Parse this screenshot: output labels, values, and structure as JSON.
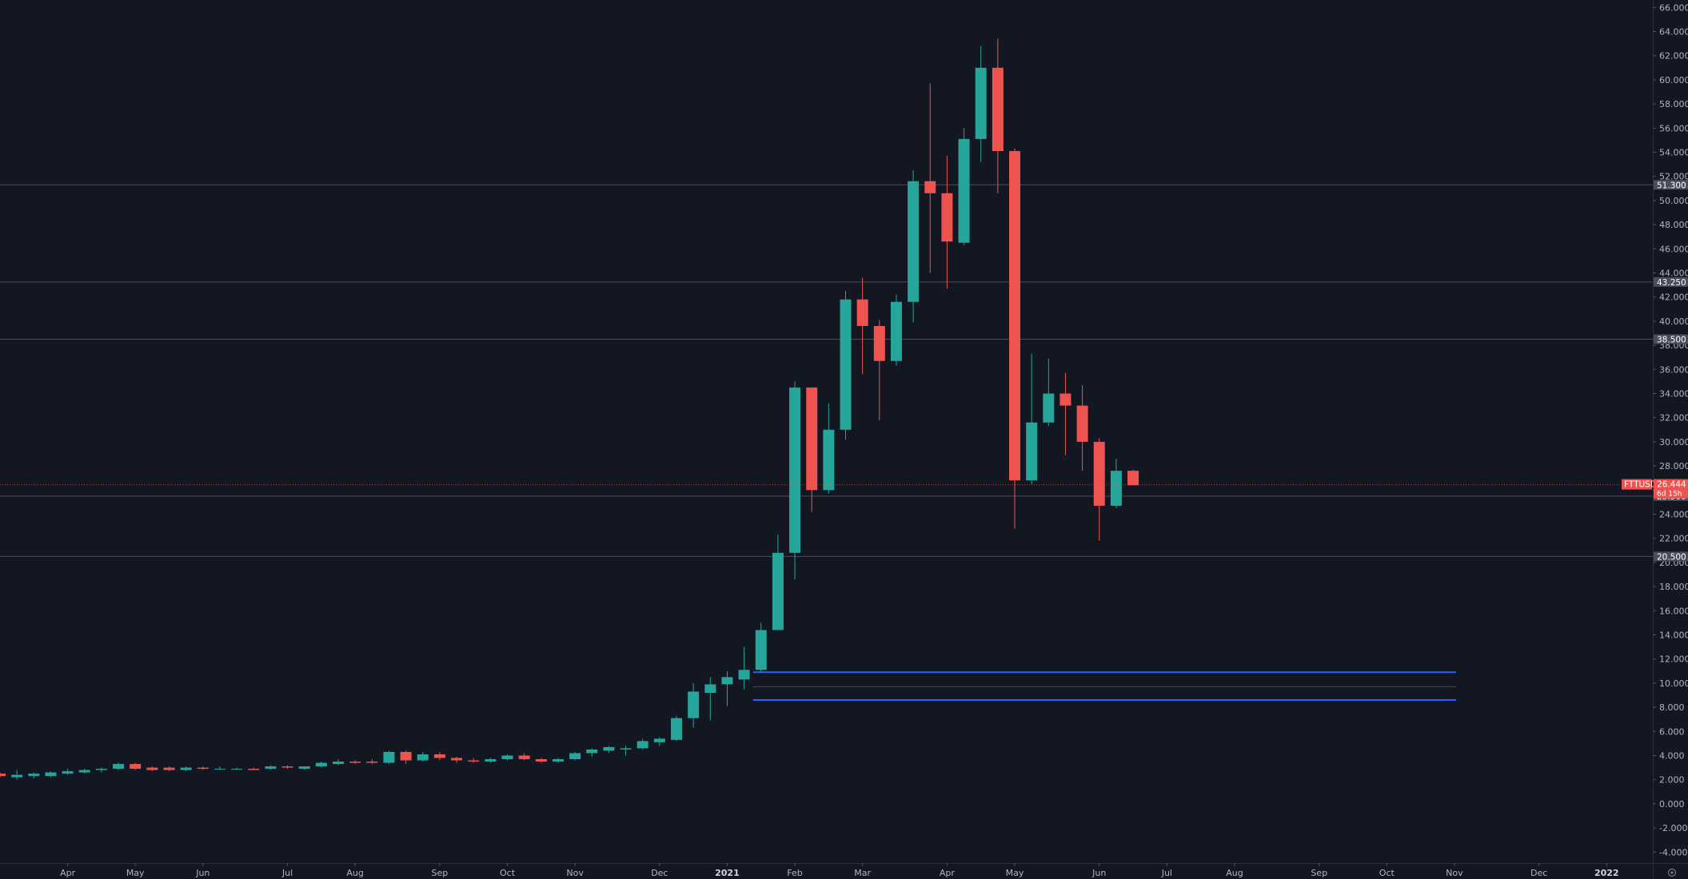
{
  "chart_data": {
    "type": "candlestick",
    "symbol": "FTTUSD",
    "interval": "weekly",
    "last_price": "26.444",
    "countdown": "6d 15h",
    "colors": {
      "background": "#131722",
      "up": "#26a69a",
      "down": "#ef5350",
      "level_line": "#4a4e5a",
      "zone_line": "#2962ff",
      "zone_mid": "#3b4a77",
      "price_line": "#ef5350"
    },
    "y_axis": {
      "min": -4,
      "max": 66,
      "step": 2,
      "ticks": [
        "-4.000",
        "-2.000",
        "0.000",
        "2.000",
        "4.000",
        "6.000",
        "8.000",
        "10.000",
        "12.000",
        "14.000",
        "16.000",
        "18.000",
        "20.000",
        "22.000",
        "24.000",
        "26.000",
        "28.000",
        "30.000",
        "32.000",
        "34.000",
        "36.000",
        "38.000",
        "40.000",
        "42.000",
        "44.000",
        "46.000",
        "48.000",
        "50.000",
        "52.000",
        "54.000",
        "56.000",
        "58.000",
        "60.000",
        "62.000",
        "64.000",
        "66.000"
      ]
    },
    "x_axis": {
      "labels": [
        {
          "text": "Apr",
          "bar": 4
        },
        {
          "text": "May",
          "bar": 8
        },
        {
          "text": "Jun",
          "bar": 12
        },
        {
          "text": "Jul",
          "bar": 17
        },
        {
          "text": "Aug",
          "bar": 21
        },
        {
          "text": "Sep",
          "bar": 26
        },
        {
          "text": "Oct",
          "bar": 30
        },
        {
          "text": "Nov",
          "bar": 34
        },
        {
          "text": "Dec",
          "bar": 39
        },
        {
          "text": "2021",
          "bar": 43,
          "bold": true
        },
        {
          "text": "Feb",
          "bar": 47
        },
        {
          "text": "Mar",
          "bar": 51
        },
        {
          "text": "Apr",
          "bar": 56
        },
        {
          "text": "May",
          "bar": 60
        },
        {
          "text": "Jun",
          "bar": 65
        },
        {
          "text": "Jul",
          "bar": 69
        },
        {
          "text": "Aug",
          "bar": 73
        },
        {
          "text": "Sep",
          "bar": 78
        },
        {
          "text": "Oct",
          "bar": 82
        },
        {
          "text": "Nov",
          "bar": 86
        },
        {
          "text": "Dec",
          "bar": 91
        },
        {
          "text": "2022",
          "bar": 95,
          "bold": true
        }
      ]
    },
    "horizontal_levels": [
      {
        "price": 51.3,
        "label": "51.300"
      },
      {
        "price": 43.25,
        "label": "43.250"
      },
      {
        "price": 38.5,
        "label": "38.500"
      },
      {
        "price": 25.5,
        "label": "25.500"
      },
      {
        "price": 20.5,
        "label": "20.500"
      }
    ],
    "zone": {
      "top": 10.9,
      "mid": 9.7,
      "bottom": 8.6,
      "start_bar": 45,
      "end_bar": 86
    },
    "candles": [
      [
        2.5,
        2.6,
        2.2,
        2.3
      ],
      [
        2.2,
        2.8,
        2.0,
        2.4
      ],
      [
        2.3,
        2.6,
        2.1,
        2.5
      ],
      [
        2.3,
        2.7,
        2.2,
        2.6
      ],
      [
        2.5,
        2.9,
        2.4,
        2.7
      ],
      [
        2.6,
        2.9,
        2.5,
        2.8
      ],
      [
        2.8,
        3.0,
        2.6,
        2.9
      ],
      [
        2.9,
        3.4,
        2.8,
        3.3
      ],
      [
        3.3,
        3.4,
        2.8,
        2.9
      ],
      [
        3.0,
        3.1,
        2.7,
        2.8
      ],
      [
        3.0,
        3.1,
        2.7,
        2.8
      ],
      [
        2.8,
        3.1,
        2.7,
        3.0
      ],
      [
        3.0,
        3.1,
        2.8,
        2.9
      ],
      [
        2.9,
        3.1,
        2.8,
        2.9
      ],
      [
        2.9,
        3.0,
        2.8,
        2.9
      ],
      [
        2.9,
        3.0,
        2.8,
        2.8
      ],
      [
        2.9,
        3.2,
        2.8,
        3.1
      ],
      [
        3.1,
        3.2,
        2.9,
        3.0
      ],
      [
        2.9,
        3.1,
        2.8,
        3.1
      ],
      [
        3.1,
        3.5,
        3.0,
        3.4
      ],
      [
        3.3,
        3.7,
        3.2,
        3.5
      ],
      [
        3.5,
        3.6,
        3.3,
        3.4
      ],
      [
        3.5,
        3.7,
        3.3,
        3.4
      ],
      [
        3.4,
        4.4,
        3.3,
        4.3
      ],
      [
        4.3,
        4.4,
        3.3,
        3.6
      ],
      [
        3.6,
        4.3,
        3.5,
        4.1
      ],
      [
        4.1,
        4.3,
        3.6,
        3.8
      ],
      [
        3.8,
        3.9,
        3.4,
        3.6
      ],
      [
        3.6,
        3.8,
        3.4,
        3.5
      ],
      [
        3.5,
        3.8,
        3.4,
        3.7
      ],
      [
        3.7,
        4.1,
        3.6,
        4.0
      ],
      [
        4.0,
        4.2,
        3.6,
        3.7
      ],
      [
        3.7,
        3.8,
        3.4,
        3.5
      ],
      [
        3.5,
        3.8,
        3.4,
        3.7
      ],
      [
        3.7,
        4.3,
        3.6,
        4.2
      ],
      [
        4.2,
        4.6,
        3.9,
        4.5
      ],
      [
        4.4,
        4.8,
        4.2,
        4.7
      ],
      [
        4.5,
        4.8,
        4.0,
        4.6
      ],
      [
        4.6,
        5.4,
        4.5,
        5.2
      ],
      [
        5.1,
        5.5,
        4.8,
        5.4
      ],
      [
        5.3,
        7.3,
        5.2,
        7.1
      ],
      [
        7.1,
        10.0,
        6.3,
        9.3
      ],
      [
        9.2,
        10.5,
        6.9,
        9.9
      ],
      [
        9.9,
        11.0,
        8.1,
        10.5
      ],
      [
        10.3,
        13.0,
        9.5,
        11.1
      ],
      [
        11.1,
        15.0,
        10.9,
        14.4
      ],
      [
        14.4,
        22.3,
        14.4,
        20.8
      ],
      [
        20.8,
        35.0,
        18.6,
        34.5
      ],
      [
        34.5,
        34.5,
        24.2,
        26.0
      ],
      [
        26.0,
        33.2,
        25.7,
        31.0
      ],
      [
        31.0,
        42.5,
        30.2,
        41.8
      ],
      [
        41.8,
        43.6,
        35.6,
        39.6
      ],
      [
        39.6,
        40.1,
        31.8,
        36.7
      ],
      [
        36.7,
        42.2,
        36.3,
        41.6
      ],
      [
        41.6,
        52.5,
        39.9,
        51.6
      ],
      [
        51.6,
        59.7,
        44.0,
        50.6
      ],
      [
        50.6,
        53.7,
        42.7,
        46.6
      ],
      [
        46.5,
        56.0,
        46.3,
        55.1
      ],
      [
        55.1,
        62.8,
        53.2,
        61.0
      ],
      [
        61.0,
        63.4,
        50.6,
        54.1
      ],
      [
        54.1,
        54.3,
        22.8,
        26.8
      ],
      [
        26.8,
        37.3,
        26.5,
        31.6
      ],
      [
        31.6,
        36.9,
        31.3,
        34.0
      ],
      [
        34.0,
        35.7,
        28.9,
        33.0
      ],
      [
        33.0,
        34.7,
        27.6,
        30.0
      ],
      [
        30.0,
        30.3,
        21.8,
        24.7
      ],
      [
        24.7,
        28.6,
        24.5,
        27.6
      ],
      [
        27.6,
        27.7,
        26.4,
        26.4
      ]
    ]
  }
}
